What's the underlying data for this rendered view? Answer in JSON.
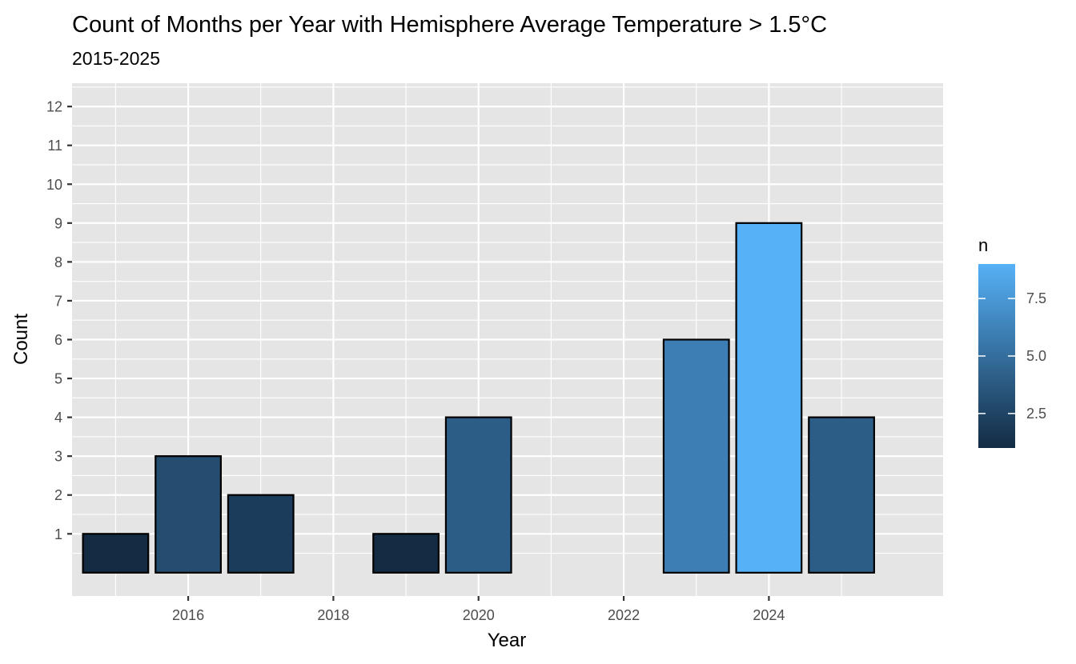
{
  "chart_data": {
    "type": "bar",
    "title": "Count of Months per Year with Hemisphere Average Temperature > 1.5°C",
    "subtitle": "2015-2025",
    "xlabel": "Year",
    "ylabel": "Count",
    "x": [
      2015,
      2016,
      2017,
      2019,
      2020,
      2023,
      2024,
      2025
    ],
    "values": [
      1,
      3,
      2,
      1,
      4,
      6,
      9,
      4
    ],
    "x_ticks": [
      "2016",
      "2018",
      "2020",
      "2022",
      "2024"
    ],
    "y_ticks": [
      "1",
      "2",
      "3",
      "4",
      "5",
      "6",
      "7",
      "8",
      "9",
      "10",
      "11",
      "12"
    ],
    "xlim": [
      2014.4,
      2026.4
    ],
    "ylim": [
      -0.6,
      12.6
    ],
    "grid": true,
    "panel_background": "#e5e5e5",
    "bar_outline": "#000000",
    "fill_scale": {
      "title": "n",
      "low": 1,
      "high": 9,
      "low_color": "#132b43",
      "high_color": "#56b1f7",
      "labels": [
        "2.5",
        "5.0",
        "7.5"
      ],
      "label_values": [
        2.5,
        5.0,
        7.5
      ]
    },
    "legend_position": "right"
  }
}
